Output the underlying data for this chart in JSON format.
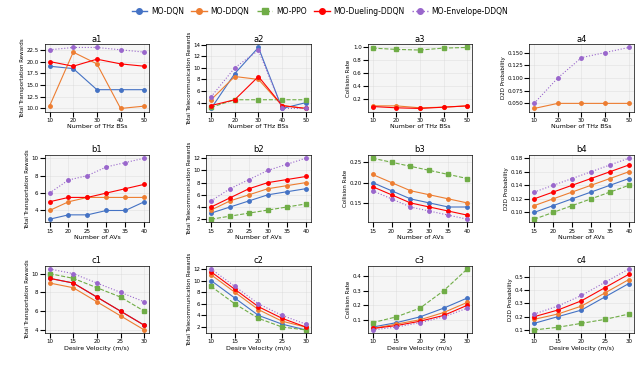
{
  "legend_labels": [
    "MO-DQN",
    "MO-DDQN",
    "MO-PPO",
    "MO-Dueling-DDQN",
    "MO-Envelope-DDQN"
  ],
  "legend_colors": [
    "#1f77b4",
    "#ff7f0e",
    "#2ca02c",
    "#d62728",
    "#9467bd"
  ],
  "legend_markers": [
    "o",
    "o",
    "s",
    "o",
    "o"
  ],
  "legend_linestyles": [
    "-",
    "-",
    "--",
    "-",
    ":"
  ],
  "row_labels": [
    "a",
    "b",
    "c"
  ],
  "col_labels": [
    "1",
    "2",
    "3",
    "4"
  ],
  "subplot_titles": [
    [
      "a1",
      "a2",
      "a3",
      "a4"
    ],
    [
      "b1",
      "b2",
      "b3",
      "b4"
    ],
    [
      "c1",
      "c2",
      "c3",
      "c4"
    ]
  ],
  "xlabels": [
    [
      "Number of THz BSs",
      "Number of THz BSs",
      "Number of THz BSs",
      "Number of THz BSs"
    ],
    [
      "Number of AVs",
      "Number of AVs",
      "Number of AVs",
      "Number of AVs"
    ],
    [
      "Desire Velocity (m/s)",
      "Desire Velocity (m/s)",
      "Desire Velocity (m/s)",
      "Desire Velocity (m/s)"
    ]
  ],
  "ylabels": [
    [
      "Total Transportation Rewards",
      "Total Telecommunication Rewards",
      "Collision Rate",
      "D2D Probability"
    ],
    [
      "Total Transportation Rewards",
      "Total Telecommunication Rewards",
      "Collision Rate",
      "D2D Probability"
    ],
    [
      "Total Transportation Rewards",
      "Total Telecommunication Rewards",
      "Collision Rate",
      "D2D Probability"
    ]
  ],
  "xticks": [
    [
      [
        10,
        20,
        30,
        40,
        50
      ],
      [
        10,
        20,
        30,
        40,
        50
      ],
      [
        10,
        20,
        30,
        40,
        50
      ],
      [
        10,
        20,
        30,
        40,
        50
      ]
    ],
    [
      [
        15,
        20,
        25,
        30,
        35,
        40
      ],
      [
        15,
        20,
        25,
        30,
        35,
        40
      ],
      [
        15,
        20,
        25,
        30,
        35,
        40
      ],
      [
        15,
        20,
        25,
        30,
        35,
        40
      ]
    ],
    [
      [
        10,
        15,
        20,
        25,
        30
      ],
      [
        10,
        15,
        20,
        25,
        30
      ],
      [
        10,
        15,
        20,
        25,
        30
      ],
      [
        10,
        15,
        20,
        25,
        30
      ]
    ]
  ],
  "series": {
    "a1": {
      "MO-DQN": [
        19.0,
        18.5,
        14.0,
        14.0,
        14.0
      ],
      "MO-DDQN": [
        10.5,
        22.0,
        19.5,
        10.0,
        10.5
      ],
      "MO-PPO": [
        null,
        null,
        null,
        null,
        null
      ],
      "MO-Dueling-DDQN": [
        20.0,
        19.0,
        20.5,
        19.5,
        19.0
      ],
      "MO-Envelope-DDQN": [
        22.5,
        23.0,
        23.0,
        22.5,
        22.0
      ]
    },
    "a2": {
      "MO-DQN": [
        3.0,
        9.0,
        13.5,
        3.0,
        4.0
      ],
      "MO-DDQN": [
        4.5,
        8.5,
        8.0,
        3.5,
        3.0
      ],
      "MO-PPO": [
        3.2,
        4.5,
        4.5,
        4.5,
        4.5
      ],
      "MO-Dueling-DDQN": [
        3.5,
        4.5,
        8.5,
        3.5,
        3.0
      ],
      "MO-Envelope-DDQN": [
        5.0,
        10.0,
        13.0,
        3.0,
        3.0
      ]
    },
    "a3": {
      "MO-DQN": [
        null,
        null,
        null,
        null,
        null
      ],
      "MO-DDQN": [
        0.1,
        0.1,
        0.07,
        0.08,
        0.1
      ],
      "MO-PPO": [
        0.99,
        0.97,
        0.96,
        0.99,
        1.0
      ],
      "MO-Dueling-DDQN": [
        0.09,
        0.07,
        0.06,
        0.08,
        0.1
      ],
      "MO-Envelope-DDQN": [
        null,
        null,
        null,
        null,
        null
      ]
    },
    "a4": {
      "MO-DQN": [
        null,
        null,
        null,
        null,
        null
      ],
      "MO-DDQN": [
        0.04,
        0.05,
        0.05,
        0.05,
        0.05
      ],
      "MO-PPO": [
        null,
        null,
        null,
        null,
        null
      ],
      "MO-Dueling-DDQN": [
        null,
        null,
        null,
        null,
        null
      ],
      "MO-Envelope-DDQN": [
        0.05,
        0.1,
        0.14,
        0.15,
        0.16
      ]
    },
    "b1": {
      "MO-DQN": [
        3.0,
        3.5,
        3.5,
        4.0,
        4.0,
        5.0
      ],
      "MO-DDQN": [
        4.0,
        5.0,
        5.5,
        5.5,
        5.5,
        5.5
      ],
      "MO-PPO": [
        null,
        null,
        null,
        null,
        null,
        null
      ],
      "MO-Dueling-DDQN": [
        5.0,
        5.5,
        5.5,
        6.0,
        6.5,
        7.0
      ],
      "MO-Envelope-DDQN": [
        6.0,
        7.5,
        8.0,
        9.0,
        9.5,
        10.0
      ]
    },
    "b2": {
      "MO-DQN": [
        3.0,
        4.0,
        5.0,
        6.0,
        6.5,
        7.0
      ],
      "MO-DDQN": [
        3.5,
        5.0,
        6.0,
        7.0,
        7.5,
        8.0
      ],
      "MO-PPO": [
        2.0,
        2.5,
        3.0,
        3.5,
        4.0,
        4.5
      ],
      "MO-Dueling-DDQN": [
        4.0,
        5.5,
        7.0,
        8.0,
        8.5,
        9.0
      ],
      "MO-Envelope-DDQN": [
        5.0,
        7.0,
        8.5,
        10.0,
        11.0,
        12.0
      ]
    },
    "b3": {
      "MO-DQN": [
        0.2,
        0.18,
        0.16,
        0.15,
        0.14,
        0.14
      ],
      "MO-DDQN": [
        0.22,
        0.2,
        0.18,
        0.17,
        0.16,
        0.15
      ],
      "MO-PPO": [
        0.26,
        0.25,
        0.24,
        0.23,
        0.22,
        0.21
      ],
      "MO-Dueling-DDQN": [
        0.19,
        0.17,
        0.15,
        0.14,
        0.13,
        0.12
      ],
      "MO-Envelope-DDQN": [
        0.18,
        0.16,
        0.14,
        0.13,
        0.12,
        0.11
      ]
    },
    "b4": {
      "MO-DQN": [
        0.1,
        0.11,
        0.12,
        0.13,
        0.14,
        0.15
      ],
      "MO-DDQN": [
        0.11,
        0.12,
        0.13,
        0.14,
        0.15,
        0.16
      ],
      "MO-PPO": [
        0.09,
        0.1,
        0.11,
        0.12,
        0.13,
        0.14
      ],
      "MO-Dueling-DDQN": [
        0.12,
        0.13,
        0.14,
        0.15,
        0.16,
        0.17
      ],
      "MO-Envelope-DDQN": [
        0.13,
        0.14,
        0.15,
        0.16,
        0.17,
        0.18
      ]
    },
    "c1": {
      "MO-DQN": [
        9.5,
        9.0,
        7.5,
        6.0,
        4.5
      ],
      "MO-DDQN": [
        9.0,
        8.5,
        7.0,
        5.5,
        4.0
      ],
      "MO-PPO": [
        10.0,
        9.5,
        8.5,
        7.5,
        6.0
      ],
      "MO-Dueling-DDQN": [
        9.5,
        9.0,
        7.5,
        6.0,
        4.5
      ],
      "MO-Envelope-DDQN": [
        10.5,
        10.0,
        9.0,
        8.0,
        7.0
      ]
    },
    "c2": {
      "MO-DQN": [
        10.0,
        7.0,
        4.0,
        2.5,
        1.5
      ],
      "MO-DDQN": [
        11.0,
        8.0,
        5.0,
        3.0,
        2.0
      ],
      "MO-PPO": [
        9.0,
        6.0,
        3.5,
        2.0,
        1.5
      ],
      "MO-Dueling-DDQN": [
        11.5,
        8.5,
        5.5,
        3.5,
        2.0
      ],
      "MO-Envelope-DDQN": [
        12.0,
        9.0,
        6.0,
        4.0,
        2.5
      ]
    },
    "c3": {
      "MO-DQN": [
        0.05,
        0.08,
        0.12,
        0.18,
        0.25
      ],
      "MO-DDQN": [
        0.04,
        0.07,
        0.1,
        0.15,
        0.22
      ],
      "MO-PPO": [
        0.08,
        0.12,
        0.18,
        0.3,
        0.45
      ],
      "MO-Dueling-DDQN": [
        0.04,
        0.06,
        0.09,
        0.13,
        0.2
      ],
      "MO-Envelope-DDQN": [
        0.03,
        0.05,
        0.08,
        0.12,
        0.18
      ]
    },
    "c4": {
      "MO-DQN": [
        0.15,
        0.2,
        0.25,
        0.35,
        0.45
      ],
      "MO-DDQN": [
        0.18,
        0.22,
        0.28,
        0.38,
        0.48
      ],
      "MO-PPO": [
        0.1,
        0.12,
        0.15,
        0.18,
        0.22
      ],
      "MO-Dueling-DDQN": [
        0.2,
        0.25,
        0.32,
        0.42,
        0.52
      ],
      "MO-Envelope-DDQN": [
        0.22,
        0.28,
        0.36,
        0.46,
        0.56
      ]
    }
  },
  "colors": {
    "MO-DQN": "#4472c4",
    "MO-DDQN": "#ed7d31",
    "MO-PPO": "#70ad47",
    "MO-Dueling-DDQN": "#ff0000",
    "MO-Envelope-DDQN": "#9966cc"
  },
  "markers": {
    "MO-DQN": "o",
    "MO-DDQN": "o",
    "MO-PPO": "s",
    "MO-Dueling-DDQN": "o",
    "MO-Envelope-DDQN": "o"
  },
  "linestyles": {
    "MO-DQN": "-",
    "MO-DDQN": "-",
    "MO-PPO": "--",
    "MO-Dueling-DDQN": "-",
    "MO-Envelope-DDQN": ":"
  }
}
